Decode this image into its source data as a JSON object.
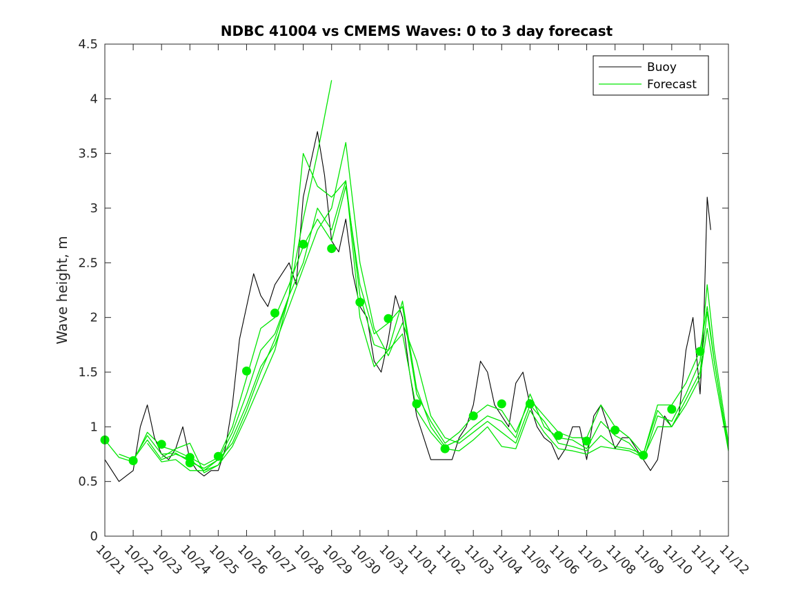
{
  "chart_data": {
    "type": "line",
    "title": "NDBC 41004 vs CMEMS Waves: 0 to 3 day forecast",
    "xlabel": "",
    "ylabel": "Wave height, m",
    "xlim": [
      "10/21",
      "11/12"
    ],
    "ylim": [
      0,
      4.5
    ],
    "x_tick_labels": [
      "10/21",
      "10/22",
      "10/23",
      "10/24",
      "10/25",
      "10/26",
      "10/27",
      "10/28",
      "10/29",
      "10/30",
      "10/31",
      "11/01",
      "11/02",
      "11/03",
      "11/04",
      "11/05",
      "11/06",
      "11/07",
      "11/08",
      "11/09",
      "11/10",
      "11/11",
      "11/12"
    ],
    "y_tick_labels": [
      "0",
      "0.5",
      "1",
      "1.5",
      "2",
      "2.5",
      "3",
      "3.5",
      "4",
      "4.5"
    ],
    "y_ticks": [
      0,
      0.5,
      1,
      1.5,
      2,
      2.5,
      3,
      3.5,
      4,
      4.5
    ],
    "grid": false,
    "legend": {
      "position": "top-right",
      "entries": [
        {
          "label": "Buoy",
          "color": "#000000"
        },
        {
          "label": "Forecast",
          "color": "#00e600"
        }
      ]
    },
    "colors": {
      "buoy": "#000000",
      "forecast": "#00e600",
      "marker": "#00ee00"
    },
    "series": [
      {
        "name": "Buoy",
        "x": [
          "10/21 00:00",
          "10/21 06:00",
          "10/21 12:00",
          "10/21 18:00",
          "10/22 00:00",
          "10/22 06:00",
          "10/22 12:00",
          "10/22 18:00",
          "10/23 00:00",
          "10/23 06:00",
          "10/23 12:00",
          "10/23 18:00",
          "10/24 00:00",
          "10/24 06:00",
          "10/24 12:00",
          "10/24 18:00",
          "10/25 00:00",
          "10/25 06:00",
          "10/25 12:00",
          "10/25 18:00",
          "10/26 00:00",
          "10/26 06:00",
          "10/26 12:00",
          "10/26 18:00",
          "10/27 00:00",
          "10/27 06:00",
          "10/27 12:00",
          "10/27 18:00",
          "10/28 00:00",
          "10/28 06:00",
          "10/28 12:00",
          "10/28 18:00",
          "10/29 00:00",
          "10/29 06:00",
          "10/29 12:00",
          "10/29 18:00",
          "10/30 00:00",
          "10/30 06:00",
          "10/30 12:00",
          "10/30 18:00",
          "10/31 00:00",
          "10/31 06:00",
          "10/31 12:00",
          "10/31 18:00",
          "11/01 00:00",
          "11/01 06:00",
          "11/01 12:00",
          "11/01 18:00",
          "11/02 00:00",
          "11/02 06:00",
          "11/02 12:00",
          "11/02 18:00",
          "11/03 00:00",
          "11/03 06:00",
          "11/03 12:00",
          "11/03 18:00",
          "11/04 00:00",
          "11/04 06:00",
          "11/04 12:00",
          "11/04 18:00",
          "11/05 00:00",
          "11/05 06:00",
          "11/05 12:00",
          "11/05 18:00",
          "11/06 00:00",
          "11/06 06:00",
          "11/06 12:00",
          "11/06 18:00",
          "11/07 00:00",
          "11/07 06:00",
          "11/07 12:00",
          "11/07 18:00",
          "11/08 00:00",
          "11/08 06:00",
          "11/08 12:00",
          "11/08 18:00",
          "11/09 00:00",
          "11/09 06:00",
          "11/09 12:00",
          "11/09 18:00",
          "11/10 00:00",
          "11/10 06:00",
          "11/10 12:00",
          "11/10 18:00",
          "11/11 00:00",
          "11/11 03:00",
          "11/11 06:00",
          "11/11 09:00"
        ],
        "values": [
          0.7,
          0.6,
          0.5,
          0.55,
          0.6,
          1.0,
          1.2,
          0.9,
          0.75,
          0.7,
          0.8,
          1.0,
          0.7,
          0.6,
          0.55,
          0.6,
          0.6,
          0.8,
          1.2,
          1.8,
          2.1,
          2.4,
          2.2,
          2.1,
          2.3,
          2.4,
          2.5,
          2.3,
          3.1,
          3.4,
          3.7,
          3.3,
          2.7,
          2.6,
          2.9,
          2.4,
          2.1,
          2.0,
          1.6,
          1.5,
          1.8,
          2.2,
          2.0,
          1.5,
          1.1,
          0.9,
          0.7,
          0.7,
          0.7,
          0.7,
          0.9,
          1.0,
          1.2,
          1.6,
          1.5,
          1.2,
          1.1,
          1.0,
          1.4,
          1.5,
          1.2,
          1.0,
          0.9,
          0.85,
          0.7,
          0.8,
          1.0,
          1.0,
          0.7,
          1.1,
          1.2,
          1.0,
          0.8,
          0.9,
          0.9,
          0.8,
          0.7,
          0.6,
          0.7,
          1.1,
          1.0,
          1.1,
          1.7,
          2.0,
          1.3,
          1.9,
          3.1,
          2.8
        ]
      },
      {
        "name": "Forecast",
        "x": [
          "10/21 00:00",
          "10/21 12:00",
          "10/22 00:00",
          "10/22 12:00",
          "10/23 00:00",
          "10/23 12:00",
          "10/24 00:00",
          "10/24 12:00",
          "10/25 00:00",
          "10/25 12:00",
          "10/26 00:00",
          "10/26 12:00",
          "10/27 00:00",
          "10/27 12:00",
          "10/28 00:00",
          "10/28 12:00",
          "10/29 00:00",
          "10/29 12:00",
          "10/30 00:00",
          "10/30 12:00",
          "10/31 00:00",
          "10/31 12:00",
          "11/01 00:00",
          "11/01 12:00",
          "11/02 00:00",
          "11/02 12:00",
          "11/03 00:00",
          "11/03 12:00",
          "11/04 00:00",
          "11/04 12:00",
          "11/05 00:00",
          "11/05 12:00",
          "11/06 00:00",
          "11/06 12:00",
          "11/07 00:00",
          "11/07 12:00",
          "11/08 00:00",
          "11/08 12:00",
          "11/09 00:00",
          "11/09 12:00",
          "11/10 00:00",
          "11/10 12:00",
          "11/11 00:00",
          "11/11 06:00",
          "11/11 12:00",
          "11/12 00:00"
        ],
        "values": [
          0.88,
          0.72,
          0.68,
          0.95,
          0.82,
          0.78,
          0.72,
          0.65,
          0.72,
          1.0,
          1.45,
          1.9,
          2.0,
          2.3,
          2.65,
          2.9,
          2.7,
          3.2,
          2.3,
          1.85,
          1.95,
          2.1,
          1.3,
          1.05,
          0.85,
          0.95,
          1.1,
          1.2,
          1.15,
          0.95,
          1.25,
          1.1,
          0.95,
          0.9,
          0.9,
          1.2,
          1.0,
          0.9,
          0.75,
          1.2,
          1.2,
          1.4,
          1.7,
          2.1,
          1.6,
          0.8
        ]
      },
      {
        "name": "Forecast",
        "x": [
          "10/21 12:00",
          "10/22 00:00",
          "10/22 12:00",
          "10/23 00:00",
          "10/23 12:00",
          "10/24 00:00",
          "10/24 12:00",
          "10/25 00:00",
          "10/25 12:00",
          "10/26 00:00",
          "10/26 12:00",
          "10/27 00:00",
          "10/27 12:00",
          "10/28 00:00",
          "10/28 12:00",
          "10/29 00:00",
          "10/29 12:00",
          "10/30 00:00",
          "10/30 12:00",
          "10/31 00:00",
          "10/31 12:00",
          "11/01 00:00",
          "11/01 12:00",
          "11/02 00:00",
          "11/02 12:00",
          "11/03 00:00",
          "11/03 12:00",
          "11/04 00:00",
          "11/04 12:00",
          "11/05 00:00",
          "11/05 12:00",
          "11/06 00:00",
          "11/06 12:00",
          "11/07 00:00",
          "11/07 12:00",
          "11/08 00:00",
          "11/08 12:00",
          "11/09 00:00",
          "11/09 12:00",
          "11/10 00:00",
          "11/10 12:00",
          "11/11 00:00",
          "11/11 06:00",
          "11/11 12:00",
          "11/12 00:00"
        ],
        "values": [
          0.75,
          0.7,
          0.92,
          0.75,
          0.76,
          0.68,
          0.62,
          0.7,
          0.95,
          1.3,
          1.7,
          1.85,
          2.2,
          2.5,
          3.0,
          2.8,
          3.25,
          2.2,
          1.75,
          1.7,
          2.15,
          1.35,
          1.0,
          0.82,
          0.88,
          1.0,
          1.1,
          1.05,
          0.9,
          1.3,
          1.0,
          0.9,
          0.88,
          0.8,
          1.05,
          0.92,
          0.85,
          0.7,
          1.1,
          1.05,
          1.3,
          1.6,
          2.3,
          1.7,
          0.85
        ]
      },
      {
        "name": "Forecast",
        "x": [
          "10/22 00:00",
          "10/22 12:00",
          "10/23 00:00",
          "10/23 12:00",
          "10/24 00:00",
          "10/24 12:00",
          "10/25 00:00",
          "10/25 12:00",
          "10/26 00:00",
          "10/26 12:00",
          "10/27 00:00",
          "10/27 12:00",
          "10/28 00:00",
          "10/28 12:00",
          "10/29 00:00",
          "10/29 12:00",
          "10/30 00:00",
          "10/30 12:00",
          "10/31 00:00",
          "10/31 12:00",
          "11/01 00:00",
          "11/01 12:00",
          "11/02 00:00",
          "11/02 12:00",
          "11/03 00:00",
          "11/03 12:00",
          "11/04 00:00",
          "11/04 12:00",
          "11/05 00:00",
          "11/05 12:00",
          "11/06 00:00",
          "11/06 12:00",
          "11/07 00:00",
          "11/07 12:00",
          "11/08 00:00",
          "11/08 12:00",
          "11/09 00:00",
          "11/09 12:00",
          "11/10 00:00",
          "11/10 12:00",
          "11/11 00:00",
          "11/11 06:00",
          "11/11 12:00",
          "11/12 00:00"
        ],
        "values": [
          0.7,
          0.88,
          0.7,
          0.75,
          0.7,
          0.6,
          0.65,
          0.9,
          1.2,
          1.55,
          1.75,
          2.1,
          2.45,
          2.8,
          3.0,
          3.6,
          2.5,
          1.9,
          1.65,
          1.95,
          1.6,
          1.1,
          0.9,
          0.85,
          0.95,
          1.05,
          0.95,
          0.85,
          1.2,
          1.05,
          0.85,
          0.82,
          0.78,
          0.92,
          0.82,
          0.8,
          0.75,
          1.15,
          1.0,
          1.25,
          1.5,
          2.05,
          1.6,
          0.8
        ]
      },
      {
        "name": "Forecast",
        "x": [
          "10/22 12:00",
          "10/23 00:00",
          "10/23 12:00",
          "10/24 00:00",
          "10/24 12:00",
          "10/25 00:00",
          "10/25 12:00",
          "10/26 00:00",
          "10/26 12:00",
          "10/27 00:00",
          "10/27 12:00",
          "10/28 00:00",
          "10/28 12:00",
          "10/29 00:00",
          "10/29 12:00",
          "10/30 00:00",
          "10/30 12:00",
          "10/31 00:00",
          "10/31 12:00",
          "11/01 00:00",
          "11/01 12:00",
          "11/02 00:00",
          "11/02 12:00",
          "11/03 00:00",
          "11/03 12:00",
          "11/04 00:00",
          "11/04 12:00",
          "11/05 00:00",
          "11/05 12:00",
          "11/06 00:00",
          "11/06 12:00",
          "11/07 00:00",
          "11/07 12:00",
          "11/08 00:00",
          "11/08 12:00",
          "11/09 00:00",
          "11/09 12:00",
          "11/10 00:00",
          "11/10 12:00",
          "11/11 00:00",
          "11/11 06:00",
          "11/11 12:00",
          "11/12 00:00"
        ],
        "values": [
          0.85,
          0.68,
          0.7,
          0.6,
          0.6,
          0.7,
          0.85,
          1.15,
          1.5,
          1.8,
          2.2,
          3.5,
          3.2,
          3.1,
          3.25,
          2.0,
          1.55,
          1.7,
          1.85,
          1.15,
          0.95,
          0.8,
          0.78,
          0.88,
          1.0,
          0.82,
          0.8,
          1.15,
          0.95,
          0.8,
          0.78,
          0.75,
          0.82,
          0.8,
          0.78,
          0.72,
          1.0,
          1.0,
          1.2,
          1.45,
          1.9,
          1.5,
          0.78
        ]
      },
      {
        "name": "Forecast",
        "x": [
          "10/23 00:00",
          "10/23 12:00",
          "10/24 00:00",
          "10/24 12:00",
          "10/25 00:00",
          "10/25 12:00",
          "10/26 00:00",
          "10/26 12:00",
          "10/27 00:00",
          "10/27 12:00",
          "10/28 00:00",
          "10/28 12:00",
          "10/29 00:00"
        ],
        "values": [
          0.72,
          0.8,
          0.85,
          0.58,
          0.65,
          0.82,
          1.1,
          1.4,
          1.7,
          2.2,
          2.9,
          3.5,
          4.17
        ]
      }
    ],
    "markers": {
      "x": [
        "10/21",
        "10/22",
        "10/23",
        "10/24",
        "10/24",
        "10/25",
        "10/26",
        "10/27",
        "10/28",
        "10/29",
        "10/30",
        "10/31",
        "11/01",
        "11/02",
        "11/03",
        "11/04",
        "11/05",
        "11/06",
        "11/07",
        "11/08",
        "11/09",
        "11/10",
        "11/11"
      ],
      "values": [
        0.88,
        0.69,
        0.84,
        0.72,
        0.67,
        0.73,
        1.51,
        2.04,
        2.67,
        2.63,
        2.14,
        1.99,
        1.21,
        0.8,
        1.1,
        1.21,
        1.21,
        0.92,
        0.87,
        0.97,
        0.74,
        1.16,
        1.69
      ]
    }
  }
}
